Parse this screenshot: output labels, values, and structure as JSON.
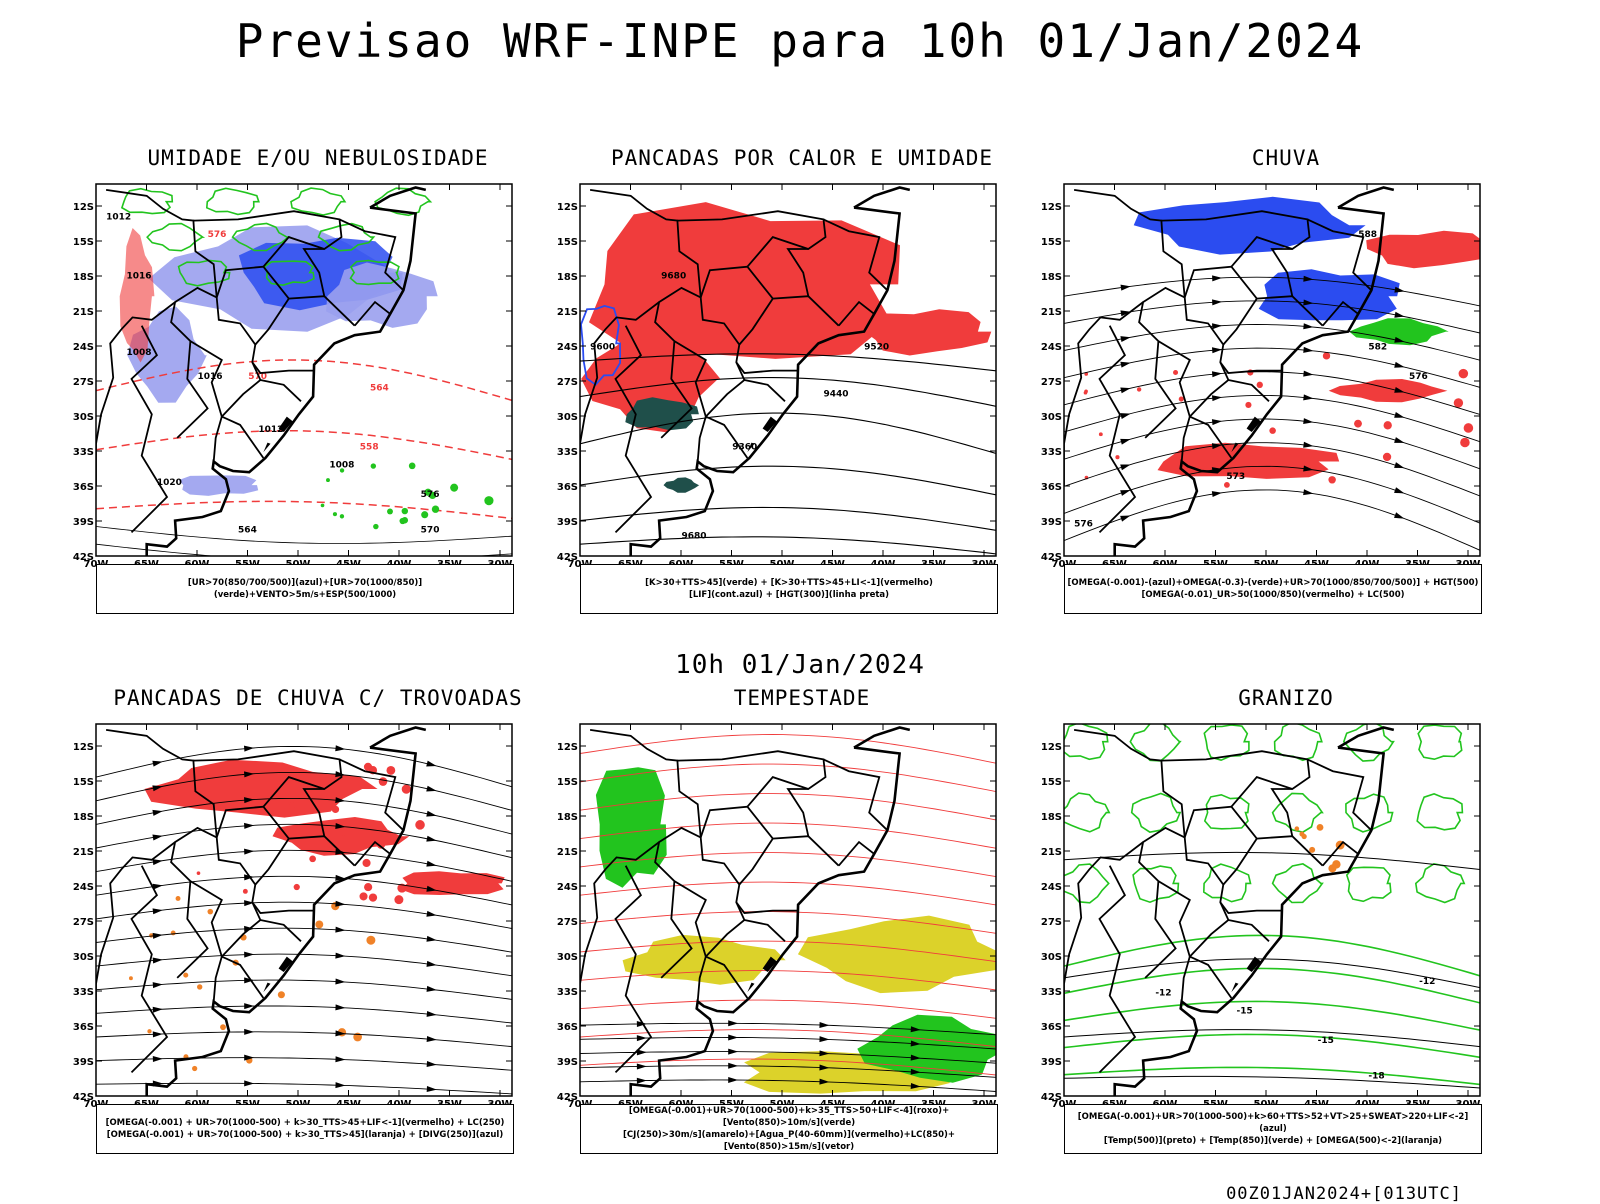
{
  "header": {
    "title": "Previsao WRF-INPE  para 10h 01/Jan/2024"
  },
  "middle": {
    "title": "10h 01/Jan/2024"
  },
  "footer": {
    "run": "00Z01JAN2024+[013UTC]"
  },
  "axes": {
    "lat_labels": [
      "12S",
      "15S",
      "18S",
      "21S",
      "24S",
      "27S",
      "30S",
      "33S",
      "36S",
      "39S",
      "42S"
    ],
    "lon_labels": [
      "70W",
      "65W",
      "60W",
      "55W",
      "50W",
      "45W",
      "40W",
      "35W",
      "30W"
    ]
  },
  "panels": [
    {
      "id": "umidade",
      "title": "UMIDADE E/OU NEBULOSIDADE",
      "caption": [
        "[UR>70(850/700/500)](azul)+[UR>70(1000/850)](verde)+VENTO>5m/s+ESP(500/1000)"
      ]
    },
    {
      "id": "pancadas-calor",
      "title": "PANCADAS POR CALOR E UMIDADE",
      "caption": [
        "[K>30+TTS>45](verde) + [K>30+TTS>45+LI<-1](vermelho)",
        "[LIF](cont.azul) + [HGT(300)](linha preta)"
      ]
    },
    {
      "id": "chuva",
      "title": "CHUVA",
      "caption": [
        "[OMEGA(-0.001)-(azul)+OMEGA(-0.3)-(verde)+UR>70(1000/850/700/500)] + HGT(500)",
        "[OMEGA(-0.01)_UR>50(1000/850)(vermelho) + LC(500)"
      ]
    },
    {
      "id": "trovoadas",
      "title": "PANCADAS DE CHUVA C/ TROVOADAS",
      "caption": [
        "[OMEGA(-0.001) + UR>70(1000-500) + k>30_TTS>45+LIF<-1](vermelho) + LC(250)",
        "[OMEGA(-0.001) + UR>70(1000-500) + k>30_TTS>45](laranja) + [DIVG(250)](azul)"
      ]
    },
    {
      "id": "tempestade",
      "title": "TEMPESTADE",
      "caption": [
        "[OMEGA(-0.001)+UR>70(1000-500)+k>35_TTS>50+LIF<-4](roxo)+[Vento(850)>10m/s](verde)",
        "[CJ(250)>30m/s](amarelo)+[Agua_P(40-60mm)](vermelho)+LC(850)+[Vento(850)>15m/s](vetor)"
      ]
    },
    {
      "id": "granizo",
      "title": "GRANIZO",
      "caption": [
        "[OMEGA(-0.001)+UR>70(1000-500)+k>60+TTS>52+VT>25+SWEAT>220+LIF<-2](azul)",
        "[Temp(500)](preto) + [Temp(850)](verde) + [OMEGA(500)<-2](laranja)"
      ]
    }
  ],
  "contour_labels": {
    "umidade": [
      "1012",
      "1016",
      "1008",
      "1020",
      "1016",
      "1012",
      "1008",
      "576",
      "570",
      "564",
      "558"
    ],
    "pancadas-calor": [
      "9680",
      "9600",
      "9520",
      "9440",
      "9360"
    ],
    "chuva": [
      "588",
      "582",
      "576",
      "573",
      "576"
    ],
    "granizo": [
      "-12",
      "-12",
      "-15",
      "-18",
      "-15"
    ]
  },
  "colors": {
    "red": "#f03c3c",
    "blue": "#2b4cf0",
    "lightblue": "#9aa0ee",
    "green": "#22c41e",
    "yellow": "#dcd22a",
    "darkteal": "#1f4f4a",
    "orange": "#f08228",
    "black": "#000000"
  }
}
